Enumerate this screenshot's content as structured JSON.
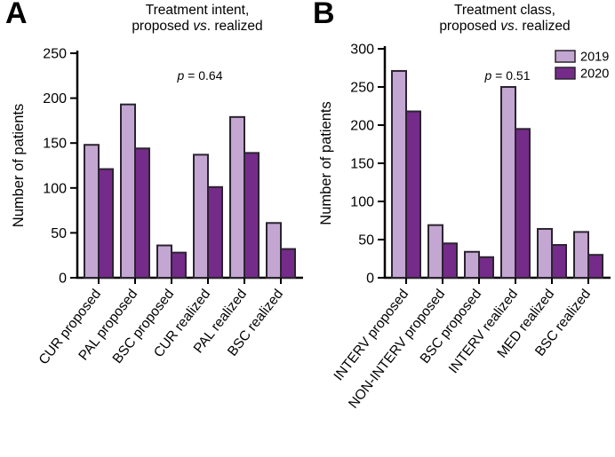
{
  "figure": {
    "panels": [
      {
        "label": "A",
        "title": {
          "line1": "Treatment intent,",
          "line2_pre": "proposed ",
          "line2_italic": "vs",
          "line2_post": ". realized"
        },
        "p_italic": "p",
        "p_rest": " = 0.64"
      },
      {
        "label": "B",
        "title": {
          "line1": "Treatment class,",
          "line2_pre": "proposed ",
          "line2_italic": "vs",
          "line2_post": ". realized"
        },
        "p_italic": "p",
        "p_rest": " = 0.51"
      }
    ]
  },
  "colors": {
    "series_2019": "#c3a6d1",
    "series_2020": "#752b89",
    "bar_outline": "#2b2430",
    "axis": "#000000",
    "text": "#000000",
    "background": "#ffffff"
  },
  "chart_data": [
    {
      "type": "bar",
      "title": "Treatment intent, proposed vs. realized",
      "xlabel": "",
      "ylabel": "Number of patients",
      "ylim": [
        0,
        250
      ],
      "ytick_step": 50,
      "grid": false,
      "annotation": "p = 0.64",
      "legend": false,
      "categories": [
        "CUR proposed",
        "PAL proposed",
        "BSC proposed",
        "CUR realized",
        "PAL realized",
        "BSC realized"
      ],
      "series": [
        {
          "name": "2019",
          "color": "#c3a6d1",
          "values": [
            148,
            193,
            36,
            137,
            179,
            61
          ]
        },
        {
          "name": "2020",
          "color": "#752b89",
          "values": [
            121,
            144,
            28,
            101,
            139,
            32
          ]
        }
      ]
    },
    {
      "type": "bar",
      "title": "Treatment class, proposed vs. realized",
      "xlabel": "",
      "ylabel": "Number of patients",
      "ylim": [
        0,
        300
      ],
      "ytick_step": 50,
      "grid": false,
      "annotation": "p = 0.51",
      "legend": true,
      "legend_position": "top-right",
      "categories": [
        "INTERV proposed",
        "NON-INTERV proposed",
        "BSC proposed",
        "INTERV realized",
        "MED realized",
        "BSC realized"
      ],
      "series": [
        {
          "name": "2019",
          "color": "#c3a6d1",
          "values": [
            271,
            69,
            34,
            250,
            64,
            60
          ]
        },
        {
          "name": "2020",
          "color": "#752b89",
          "values": [
            218,
            45,
            27,
            195,
            43,
            30
          ]
        }
      ]
    }
  ]
}
